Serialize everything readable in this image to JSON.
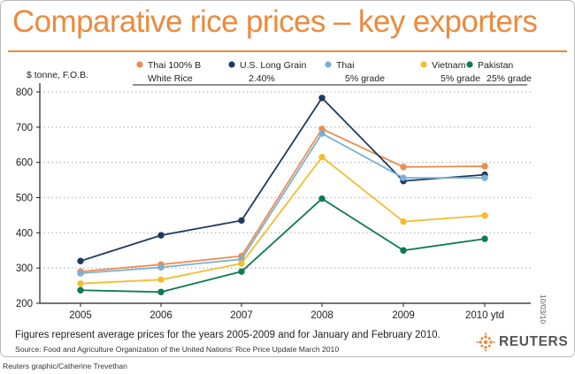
{
  "title": "Comparative rice prices – key exporters",
  "footnote": "Figures represent average prices for the years 2005-2009 and for January and February 2010.",
  "source": "Source: Food and Agriculture Organization of the United Nations' Rice Price Update March 2010",
  "credit": "Reuters graphic/Catherine Trevethan",
  "logo_text": "REUTERS",
  "date_stamp": "10/03/10",
  "colors": {
    "title": "#ec8a3d",
    "axis": "#222222",
    "grid": "#bdbdbd"
  },
  "chart_data": {
    "type": "line",
    "ylabel": "$ tonne, F.O.B.",
    "xlabel": "",
    "categories": [
      "2005",
      "2006",
      "2007",
      "2008",
      "2009",
      "2010 ytd"
    ],
    "ylim": [
      200,
      800
    ],
    "yticks": [
      200,
      300,
      400,
      500,
      600,
      700,
      800
    ],
    "grid": "horizontal dotted",
    "legend_placement": "top",
    "series": [
      {
        "name": "Thai 100% B White Rice",
        "label_lines": [
          "Thai 100% B",
          "White Rice"
        ],
        "color": "#ee8b4e",
        "values": [
          290,
          310,
          334,
          695,
          587,
          589
        ]
      },
      {
        "name": "U.S. Long Grain 2.40%",
        "label_lines": [
          "U.S. Long Grain",
          "2.40%"
        ],
        "color": "#1e3a5f",
        "values": [
          320,
          393,
          435,
          783,
          547,
          565
        ]
      },
      {
        "name": "Thai 5% grade",
        "label_lines": [
          "Thai",
          "5% grade"
        ],
        "color": "#7ab0d4",
        "values": [
          285,
          302,
          325,
          682,
          556,
          556
        ]
      },
      {
        "name": "Vietnam 5% grade",
        "label_lines": [
          "Vietnam",
          "5% grade"
        ],
        "color": "#f3bd2e",
        "values": [
          256,
          267,
          313,
          615,
          432,
          449
        ]
      },
      {
        "name": "Pakistan 25% grade",
        "label_lines": [
          "Pakistan",
          "25% grade"
        ],
        "color": "#0d7a52",
        "values": [
          237,
          232,
          290,
          497,
          350,
          383
        ]
      }
    ]
  }
}
